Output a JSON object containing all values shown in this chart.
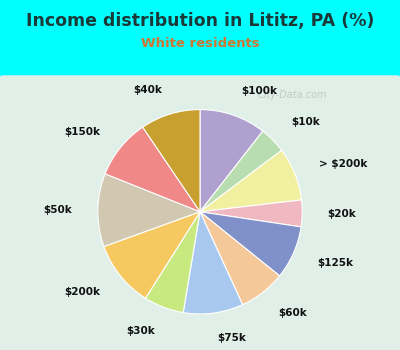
{
  "title": "Income distribution in Lititz, PA (%)",
  "subtitle": "White residents",
  "title_color": "#1a3a3a",
  "subtitle_color": "#cc7733",
  "background_color": "#00ffff",
  "chart_bg_color": "#e0f0e8",
  "watermark": "City-Data.com",
  "slices": [
    {
      "label": "$100k",
      "value": 10,
      "color": "#b0a0d0"
    },
    {
      "label": "$10k",
      "value": 4,
      "color": "#b8ddb0"
    },
    {
      "label": "> $200k",
      "value": 8,
      "color": "#f0f0a0"
    },
    {
      "label": "$20k",
      "value": 4,
      "color": "#f0b8c0"
    },
    {
      "label": "$125k",
      "value": 8,
      "color": "#8090c8"
    },
    {
      "label": "$60k",
      "value": 7,
      "color": "#f5c89a"
    },
    {
      "label": "$75k",
      "value": 9,
      "color": "#a8c8f0"
    },
    {
      "label": "$30k",
      "value": 6,
      "color": "#c8e880"
    },
    {
      "label": "$200k",
      "value": 10,
      "color": "#f5c860"
    },
    {
      "label": "$50k",
      "value": 11,
      "color": "#d0c8b0"
    },
    {
      "label": "$150k",
      "value": 9,
      "color": "#f08888"
    },
    {
      "label": "$40k",
      "value": 9,
      "color": "#c8a030"
    }
  ],
  "label_fontsize": 7.5,
  "title_fontsize": 12.5,
  "subtitle_fontsize": 9.5
}
